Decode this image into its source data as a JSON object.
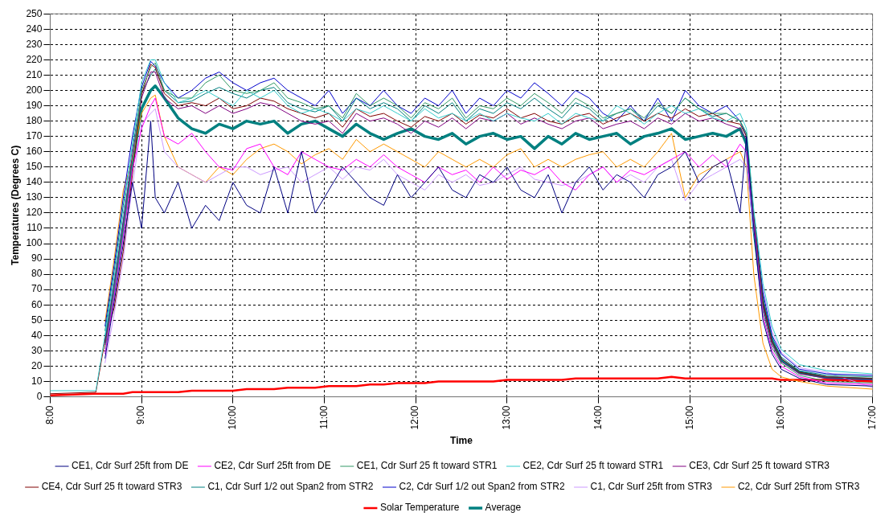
{
  "chart_data": {
    "type": "line",
    "xlabel": "Time",
    "ylabel": "Temperatures (Degrees C)",
    "x": [
      8.0,
      8.5,
      8.6,
      8.7,
      8.8,
      8.9,
      9.0,
      9.1,
      9.15,
      9.25,
      9.4,
      9.55,
      9.7,
      9.85,
      10.0,
      10.15,
      10.3,
      10.45,
      10.6,
      10.75,
      10.9,
      11.05,
      11.2,
      11.35,
      11.5,
      11.65,
      11.8,
      11.95,
      12.1,
      12.25,
      12.4,
      12.55,
      12.7,
      12.85,
      13.0,
      13.15,
      13.3,
      13.45,
      13.6,
      13.75,
      13.9,
      14.05,
      14.2,
      14.35,
      14.5,
      14.65,
      14.8,
      14.95,
      15.1,
      15.25,
      15.4,
      15.55,
      15.62,
      15.7,
      15.8,
      15.9,
      16.0,
      16.2,
      16.5,
      17.0
    ],
    "xlim": [
      8,
      17
    ],
    "xticks": [
      {
        "value": 8,
        "label": "8:00"
      },
      {
        "value": 9,
        "label": "9:00"
      },
      {
        "value": 10,
        "label": "10:00"
      },
      {
        "value": 11,
        "label": "11:00"
      },
      {
        "value": 12,
        "label": "12:00"
      },
      {
        "value": 13,
        "label": "13:00"
      },
      {
        "value": 14,
        "label": "14:00"
      },
      {
        "value": 15,
        "label": "15:00"
      },
      {
        "value": 16,
        "label": "16:00"
      },
      {
        "value": 17,
        "label": "17:00"
      }
    ],
    "ylim": [
      0,
      250
    ],
    "yticks": [
      0,
      10,
      20,
      30,
      40,
      50,
      60,
      70,
      80,
      90,
      100,
      110,
      120,
      130,
      140,
      150,
      160,
      170,
      180,
      190,
      200,
      210,
      220,
      230,
      240,
      250
    ],
    "grid": true,
    "legend": "bottom",
    "marker": "none",
    "line_style": "solid",
    "series": [
      {
        "name": "CE1, Cdr Surf 25ft from DE",
        "color": "#000080",
        "values": [
          null,
          null,
          25,
          62,
          100,
          140,
          110,
          180,
          130,
          120,
          140,
          110,
          125,
          115,
          140,
          125,
          120,
          150,
          120,
          160,
          120,
          135,
          150,
          140,
          130,
          125,
          145,
          130,
          140,
          150,
          135,
          130,
          145,
          140,
          150,
          135,
          130,
          145,
          120,
          140,
          150,
          135,
          145,
          140,
          130,
          145,
          150,
          160,
          140,
          150,
          155,
          120,
          170,
          110,
          50,
          28,
          18,
          12,
          8,
          7
        ]
      },
      {
        "name": "CE2, Cdr Surf 25ft from DE",
        "color": "#ff00ff",
        "values": [
          null,
          null,
          28,
          66,
          105,
          148,
          175,
          190,
          195,
          170,
          165,
          172,
          160,
          150,
          148,
          162,
          165,
          150,
          145,
          160,
          155,
          150,
          148,
          155,
          150,
          158,
          150,
          145,
          140,
          150,
          145,
          148,
          140,
          150,
          142,
          148,
          145,
          150,
          140,
          135,
          145,
          150,
          140,
          148,
          145,
          150,
          155,
          160,
          150,
          158,
          150,
          165,
          160,
          112,
          53,
          30,
          20,
          13,
          9,
          8
        ]
      },
      {
        "name": "CE1, Cdr Surf 25 ft toward STR1",
        "color": "#339966",
        "values": [
          null,
          null,
          31,
          70,
          110,
          152,
          200,
          215,
          218,
          200,
          195,
          195,
          205,
          210,
          200,
          198,
          200,
          205,
          195,
          192,
          188,
          190,
          182,
          198,
          190,
          195,
          190,
          182,
          192,
          188,
          195,
          182,
          190,
          188,
          195,
          190,
          198,
          192,
          185,
          195,
          190,
          182,
          185,
          188,
          182,
          192,
          185,
          195,
          188,
          185,
          185,
          180,
          172,
          114,
          56,
          32,
          22,
          14,
          10,
          9
        ]
      },
      {
        "name": "CE2, Cdr Surf 25 ft toward STR1",
        "color": "#33cccc",
        "values": [
          4,
          4,
          40,
          78,
          120,
          165,
          205,
          220,
          220,
          205,
          192,
          195,
          200,
          195,
          190,
          200,
          195,
          200,
          190,
          185,
          188,
          185,
          180,
          188,
          185,
          190,
          185,
          180,
          188,
          182,
          185,
          180,
          185,
          180,
          185,
          182,
          180,
          185,
          178,
          185,
          182,
          180,
          190,
          185,
          178,
          185,
          190,
          185,
          188,
          182,
          180,
          185,
          175,
          122,
          74,
          46,
          31,
          21,
          17,
          15
        ]
      },
      {
        "name": "CE3, Cdr Surf 25 ft toward STR3",
        "color": "#800080",
        "values": [
          null,
          null,
          34,
          74,
          115,
          158,
          195,
          212,
          212,
          195,
          188,
          190,
          185,
          190,
          185,
          188,
          192,
          190,
          185,
          180,
          178,
          180,
          172,
          185,
          180,
          182,
          178,
          172,
          180,
          176,
          182,
          175,
          182,
          180,
          185,
          178,
          182,
          178,
          175,
          180,
          182,
          175,
          178,
          180,
          175,
          182,
          178,
          185,
          180,
          182,
          178,
          175,
          168,
          116,
          59,
          34,
          23,
          15,
          12,
          11
        ]
      },
      {
        "name": "CE4, Cdr Surf 25 ft toward STR3",
        "color": "#800000",
        "values": [
          2,
          3,
          37,
          58,
          95,
          145,
          197,
          217,
          215,
          198,
          190,
          192,
          190,
          195,
          188,
          190,
          195,
          193,
          188,
          185,
          182,
          185,
          176,
          188,
          183,
          185,
          180,
          176,
          183,
          180,
          185,
          178,
          184,
          182,
          188,
          182,
          185,
          180,
          178,
          183,
          185,
          178,
          182,
          185,
          180,
          185,
          182,
          188,
          183,
          185,
          180,
          178,
          170,
          118,
          62,
          36,
          25,
          16,
          13,
          12
        ]
      },
      {
        "name": "C1, Cdr Surf 1/2 out Span2 from STR2",
        "color": "#008080",
        "values": [
          null,
          null,
          43,
          82,
          125,
          162,
          198,
          210,
          214,
          200,
          192,
          193,
          198,
          202,
          198,
          195,
          200,
          202,
          192,
          188,
          186,
          190,
          180,
          195,
          188,
          192,
          188,
          180,
          190,
          185,
          192,
          180,
          188,
          185,
          192,
          188,
          195,
          188,
          182,
          192,
          188,
          180,
          185,
          188,
          180,
          190,
          185,
          195,
          188,
          183,
          185,
          180,
          172,
          119,
          65,
          38,
          26,
          17,
          14,
          13
        ]
      },
      {
        "name": "C2, Cdr Surf 1/2 out Span2 from STR2",
        "color": "#0000cc",
        "values": [
          null,
          null,
          46,
          86,
          130,
          170,
          202,
          219,
          216,
          205,
          195,
          200,
          208,
          212,
          205,
          200,
          205,
          208,
          200,
          195,
          190,
          200,
          185,
          195,
          190,
          200,
          190,
          185,
          195,
          190,
          200,
          185,
          195,
          190,
          200,
          195,
          205,
          198,
          190,
          200,
          195,
          185,
          180,
          190,
          180,
          195,
          180,
          200,
          190,
          185,
          190,
          180,
          170,
          120,
          68,
          40,
          28,
          18,
          15,
          14
        ]
      },
      {
        "name": "C1, Cdr Surf 25ft from STR3",
        "color": "#cc99ff",
        "values": [
          null,
          null,
          22,
          54,
          90,
          138,
          178,
          185,
          188,
          160,
          150,
          145,
          140,
          145,
          150,
          150,
          145,
          148,
          150,
          140,
          145,
          150,
          142,
          150,
          148,
          155,
          145,
          140,
          135,
          145,
          140,
          145,
          138,
          140,
          145,
          150,
          142,
          140,
          138,
          140,
          145,
          150,
          140,
          145,
          140,
          150,
          155,
          128,
          140,
          145,
          150,
          155,
          150,
          108,
          71,
          43,
          29,
          19,
          16,
          6
        ]
      },
      {
        "name": "C2, Cdr Surf 25ft from STR3",
        "color": "#ff9900",
        "values": [
          null,
          null,
          49,
          90,
          135,
          155,
          185,
          195,
          197,
          170,
          150,
          145,
          140,
          150,
          145,
          155,
          162,
          165,
          160,
          152,
          158,
          162,
          155,
          168,
          160,
          165,
          160,
          155,
          150,
          160,
          155,
          150,
          155,
          150,
          158,
          162,
          150,
          155,
          150,
          155,
          158,
          160,
          150,
          155,
          150,
          160,
          172,
          130,
          145,
          150,
          155,
          160,
          150,
          80,
          35,
          18,
          13,
          10,
          7,
          5
        ]
      },
      {
        "name": "Average",
        "color": "#008080",
        "values": [
          null,
          null,
          35,
          70,
          110,
          152,
          188,
          200,
          203,
          195,
          182,
          175,
          172,
          178,
          175,
          180,
          178,
          180,
          172,
          178,
          180,
          175,
          170,
          178,
          172,
          168,
          172,
          175,
          170,
          168,
          172,
          165,
          170,
          172,
          168,
          170,
          162,
          170,
          165,
          172,
          168,
          170,
          172,
          165,
          170,
          172,
          175,
          168,
          170,
          172,
          170,
          175,
          165,
          110,
          61,
          37,
          24,
          16,
          12.5,
          11.5
        ]
      },
      {
        "name": "Solar Temperature",
        "color": "#ff0000",
        "values": [
          1,
          2,
          2,
          2,
          2,
          3,
          3,
          3,
          3,
          3,
          3,
          4,
          4,
          4,
          4,
          5,
          5,
          5,
          6,
          6,
          6,
          7,
          7,
          7,
          8,
          8,
          9,
          9,
          9,
          10,
          10,
          10,
          10,
          10,
          11,
          11,
          11,
          11,
          11,
          12,
          12,
          12,
          12,
          12,
          12,
          12,
          13,
          12,
          12,
          12,
          12,
          12,
          12,
          12,
          12,
          12,
          11,
          11,
          11,
          10
        ]
      }
    ]
  }
}
